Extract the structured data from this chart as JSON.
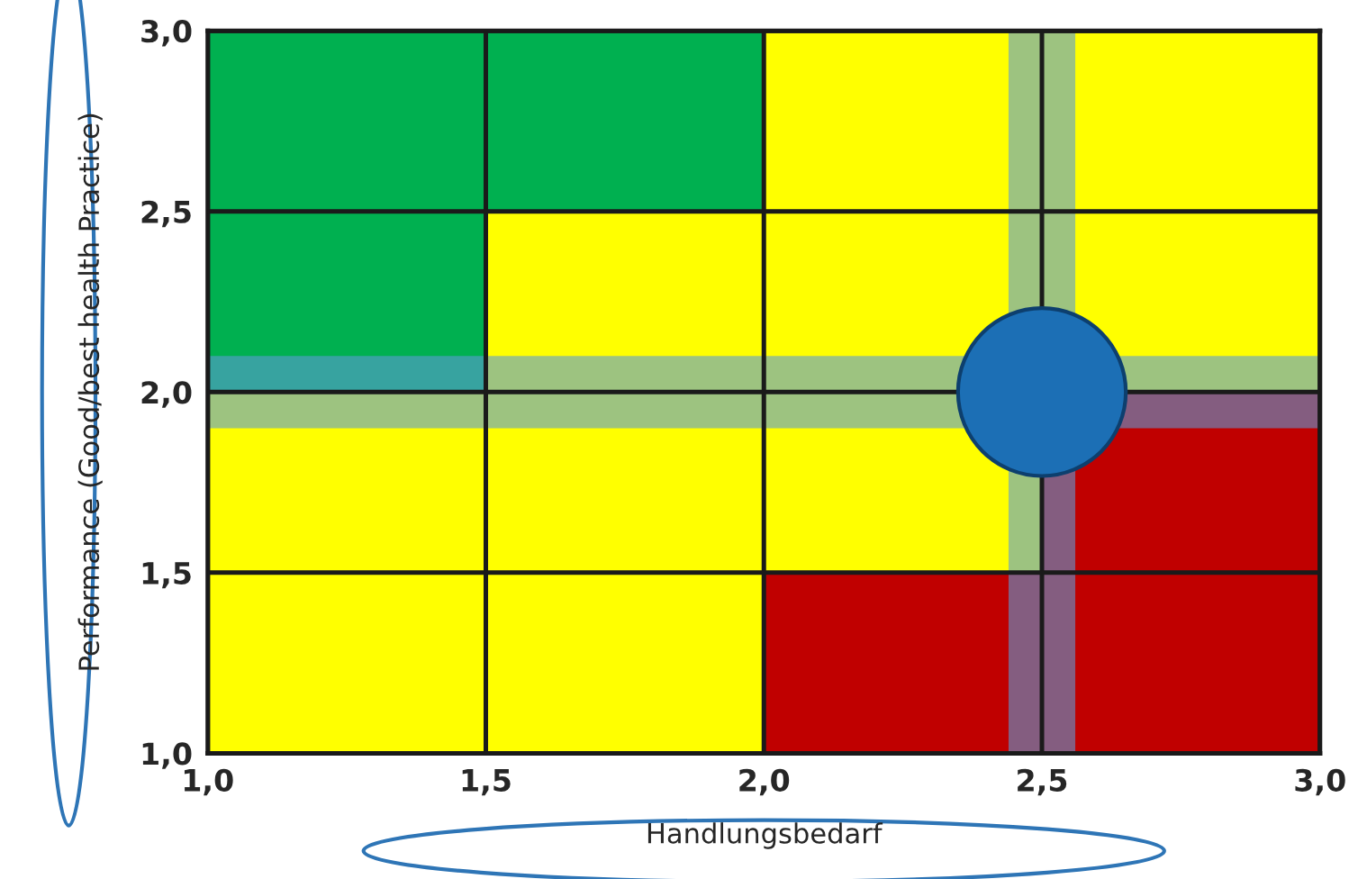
{
  "chart_data": {
    "type": "bubble",
    "xlabel": "Handlungsbedarf",
    "ylabel": "Performance (Good/best health Practice)",
    "x": [
      2.5
    ],
    "values": [
      2.0
    ],
    "sizes": [
      1
    ],
    "color": "#1c6fb5",
    "marker": "circle",
    "xlim": [
      1.0,
      3.0
    ],
    "ylim": [
      1.0,
      3.0
    ],
    "xticks": [
      {
        "value": 1.0,
        "label": "1,0"
      },
      {
        "value": 1.5,
        "label": "1,5"
      },
      {
        "value": 2.0,
        "label": "2,0"
      },
      {
        "value": 2.5,
        "label": "2,5"
      },
      {
        "value": 3.0,
        "label": "3,0"
      }
    ],
    "yticks": [
      {
        "value": 1.0,
        "label": "1,0"
      },
      {
        "value": 1.5,
        "label": "1,5"
      },
      {
        "value": 2.0,
        "label": "2,0"
      },
      {
        "value": 2.5,
        "label": "2,5"
      },
      {
        "value": 3.0,
        "label": "3,0"
      }
    ],
    "bands": [
      {
        "axis": "x",
        "from": 2.44,
        "to": 2.56,
        "color": "#5b9bd5"
      },
      {
        "axis": "y",
        "from": 1.9,
        "to": 2.1,
        "color": "#5b9bd5"
      }
    ],
    "grid": true
  }
}
